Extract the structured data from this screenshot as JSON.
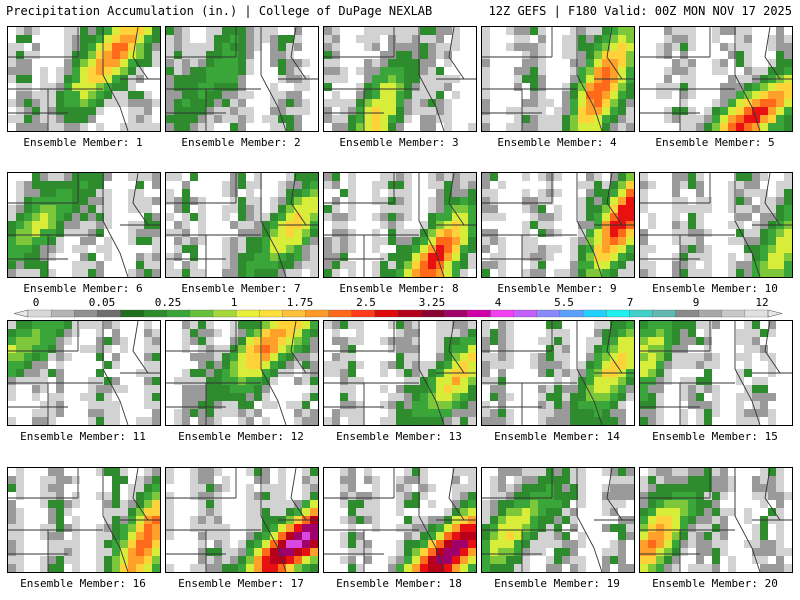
{
  "header": {
    "left": "Precipitation Accumulation (in.) | College of DuPage NEXLAB",
    "right": "12Z GEFS | F180 Valid: 00Z MON NOV 17 2025"
  },
  "chart_data": {
    "type": "heatmap",
    "title": "Precipitation Accumulation (in.)",
    "units": "in.",
    "colorbar": {
      "tick_labels": [
        "0",
        "0.05",
        "0.25",
        "1",
        "1.75",
        "2.5",
        "3.25",
        "4",
        "5.5",
        "7",
        "9",
        "12"
      ],
      "colors": [
        "#d8d8d8",
        "#b4b4b4",
        "#909090",
        "#6e6e6e",
        "#1e6e1e",
        "#2e8b2e",
        "#3aa63a",
        "#66c03a",
        "#a6d83a",
        "#e8f03a",
        "#ffe03a",
        "#ffc03a",
        "#ff9a2a",
        "#ff6a1a",
        "#ff3a1a",
        "#e00a0a",
        "#b4001a",
        "#8a0030",
        "#a0006a",
        "#d000a8",
        "#f040f0",
        "#c060ff",
        "#8a8aff",
        "#5aa0ff",
        "#20d0ff",
        "#20f0f0",
        "#40d0c8",
        "#60b8b0",
        "#8a8a8a",
        "#a8a8a8",
        "#c8c8c8",
        "#e0e0e0"
      ]
    },
    "panels": [
      {
        "label": "Ensemble Member: 1",
        "max_in": 2.2,
        "core": [
          0.7,
          0.25
        ]
      },
      {
        "label": "Ensemble Member: 2",
        "max_in": 0.6,
        "core": [
          0.3,
          0.5
        ]
      },
      {
        "label": "Ensemble Member: 3",
        "max_in": 1.3,
        "core": [
          0.35,
          0.85
        ]
      },
      {
        "label": "Ensemble Member: 4",
        "max_in": 2.4,
        "core": [
          0.8,
          0.55
        ]
      },
      {
        "label": "Ensemble Member: 5",
        "max_in": 2.7,
        "core": [
          0.75,
          0.85
        ]
      },
      {
        "label": "Ensemble Member: 6",
        "max_in": 1.0,
        "core": [
          0.2,
          0.5
        ]
      },
      {
        "label": "Ensemble Member: 7",
        "max_in": 1.4,
        "core": [
          0.85,
          0.5
        ]
      },
      {
        "label": "Ensemble Member: 8",
        "max_in": 2.6,
        "core": [
          0.72,
          0.85
        ]
      },
      {
        "label": "Ensemble Member: 9",
        "max_in": 3.0,
        "core": [
          0.95,
          0.4
        ]
      },
      {
        "label": "Ensemble Member: 10",
        "max_in": 1.2,
        "core": [
          0.92,
          0.75
        ]
      },
      {
        "label": "Ensemble Member: 11",
        "max_in": 1.0,
        "core": [
          0.05,
          0.3
        ]
      },
      {
        "label": "Ensemble Member: 12",
        "max_in": 2.0,
        "core": [
          0.7,
          0.2
        ]
      },
      {
        "label": "Ensemble Member: 13",
        "max_in": 1.5,
        "core": [
          0.9,
          0.5
        ]
      },
      {
        "label": "Ensemble Member: 14",
        "max_in": 1.5,
        "core": [
          0.9,
          0.4
        ]
      },
      {
        "label": "Ensemble Member: 15",
        "max_in": 1.0,
        "core": [
          0.05,
          0.35
        ]
      },
      {
        "label": "Ensemble Member: 16",
        "max_in": 2.4,
        "core": [
          0.9,
          0.7
        ]
      },
      {
        "label": "Ensemble Member: 17",
        "max_in": 4.5,
        "core": [
          0.88,
          0.7
        ]
      },
      {
        "label": "Ensemble Member: 18",
        "max_in": 4.0,
        "core": [
          0.82,
          0.82
        ]
      },
      {
        "label": "Ensemble Member: 19",
        "max_in": 1.2,
        "core": [
          0.2,
          0.6
        ]
      },
      {
        "label": "Ensemble Member: 20",
        "max_in": 1.9,
        "core": [
          0.08,
          0.72
        ]
      }
    ]
  }
}
